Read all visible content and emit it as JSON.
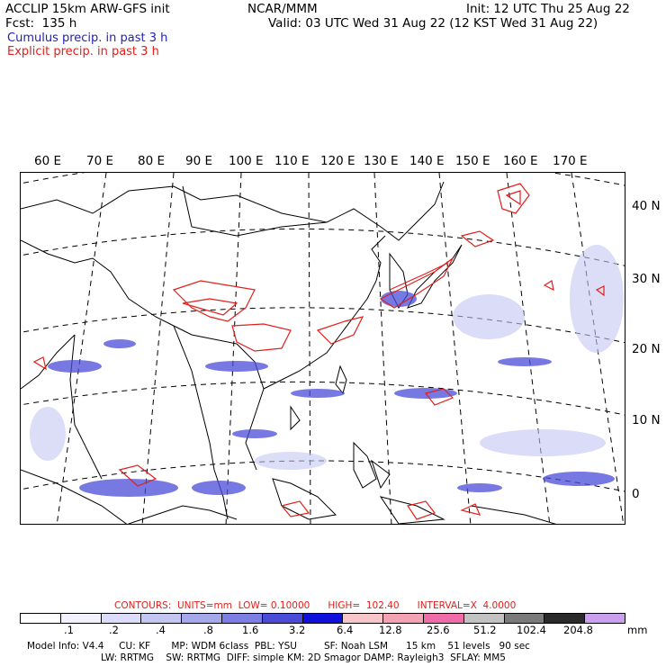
{
  "header": {
    "left1": "ACCLIP 15km ARW-GFS init",
    "left2": "Fcst:  135 h",
    "center": "NCAR/MMM",
    "init": "Init: 12 UTC Thu 25 Aug 22",
    "valid": "Valid: 03 UTC Wed 31 Aug 22 (12 KST Wed 31 Aug 22)",
    "legend_cumulus": "Cumulus precip. in past 3 h",
    "legend_explicit": "Explicit precip. in past 3 h"
  },
  "lon_labels": [
    "60 E",
    "70 E",
    "80 E",
    "90 E",
    "100 E",
    "110 E",
    "120 E",
    "130 E",
    "140 E",
    "150 E",
    "160 E",
    "170 E"
  ],
  "lat_labels": [
    "40 N",
    "30 N",
    "20 N",
    "10 N",
    "0"
  ],
  "contours": {
    "label": "CONTOURS:  UNITS=mm  LOW= 0.10000      HIGH=  102.40      INTERVAL=X  4.0000"
  },
  "colorbar": {
    "colors": [
      "#ffffff",
      "#f2f2ff",
      "#dcdcfa",
      "#c4c6f2",
      "#a6a8ec",
      "#7c7ee4",
      "#4a4cd8",
      "#1010dc",
      "#f7c6c8",
      "#f4a3b4",
      "#f06ca8",
      "#c2c2c2",
      "#7a7a7a",
      "#2a2a2a",
      "#c8a0ee"
    ],
    "ticks": [
      ".1",
      ".2",
      ".4",
      ".8",
      "1.6",
      "3.2",
      "6.4",
      "12.8",
      "25.6",
      "51.2",
      "102.4",
      "204.8"
    ],
    "unit": "mm"
  },
  "footer": {
    "line1": "Model Info: V4.4     CU: KF       MP: WDM 6class  PBL: YSU         SF: Noah LSM      15 km    51 levels   90 sec",
    "line2": "LW: RRTMG    SW: RRTMG  DIFF: simple KM: 2D Smagor DAMP: Rayleigh3  SFLAY: MM5"
  },
  "colors": {
    "cumulus": "#1f1fb4",
    "explicit": "#e0201c"
  }
}
